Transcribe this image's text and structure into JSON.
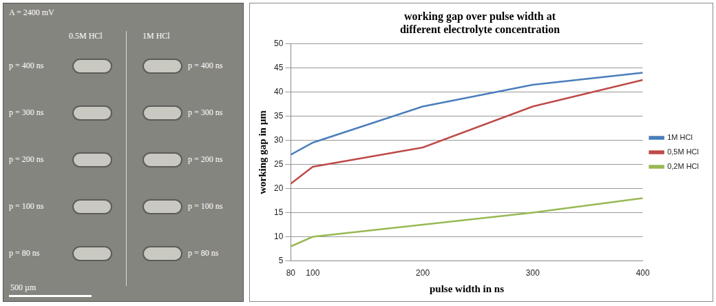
{
  "image_panel": {
    "title": "A = 2400 mV",
    "columns": [
      "0.5M HCl",
      "1M HCl"
    ],
    "rows": [
      [
        "p = 400 ns",
        "p = 400 ns"
      ],
      [
        "p = 300 ns",
        "p = 300 ns"
      ],
      [
        "p = 200 ns",
        "p = 200 ns"
      ],
      [
        "p = 100 ns",
        "p = 100 ns"
      ],
      [
        "p = 80 ns",
        "p = 80 ns"
      ]
    ],
    "scale_bar": "500 µm"
  },
  "chart_data": {
    "type": "line",
    "title": "working gap over pulse width at different electrolyte concentration",
    "x_label": "pulse width in ns",
    "y_label": "working gap in µm",
    "x": [
      80,
      100,
      200,
      300,
      400
    ],
    "series": [
      {
        "name": "1M HCl",
        "color": "#4a7ebb",
        "values": [
          27,
          29.5,
          37,
          41.5,
          44
        ]
      },
      {
        "name": "0,5M HCl",
        "color": "#be4b48",
        "values": [
          21,
          24.5,
          28.5,
          37,
          42.5
        ]
      },
      {
        "name": "0,2M HCl",
        "color": "#98b954",
        "values": [
          8,
          10,
          12.5,
          15,
          18
        ]
      }
    ],
    "xlim": [
      80,
      400
    ],
    "xticks": [
      80,
      100,
      200,
      300,
      400
    ],
    "ylim": [
      5,
      50
    ],
    "yticks": [
      5,
      10,
      15,
      20,
      25,
      30,
      35,
      40,
      45,
      50
    ],
    "grid": true,
    "legend": "right",
    "marker": "none"
  }
}
